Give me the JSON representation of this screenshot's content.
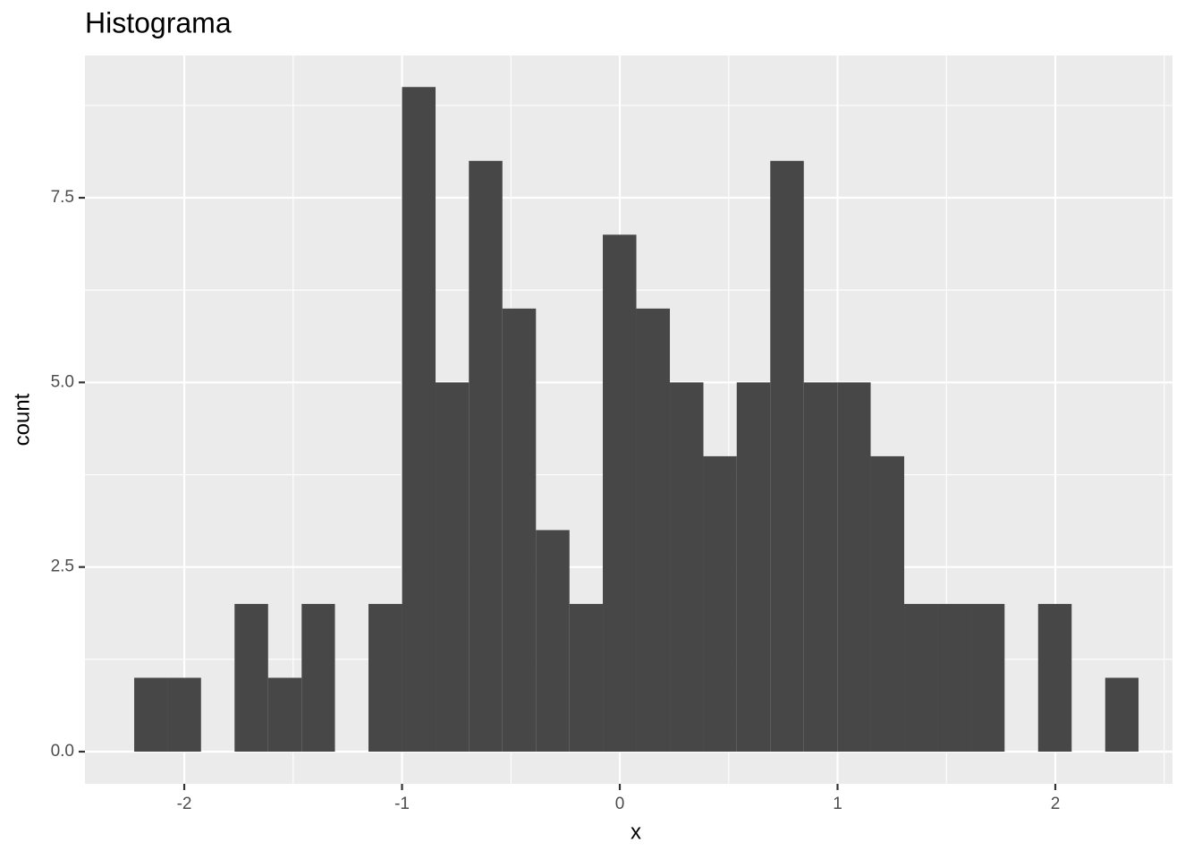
{
  "chart_data": {
    "type": "histogram",
    "title": "Histograma",
    "x_label": "x",
    "y_label": "count",
    "bins": [
      -2.23,
      -2.076,
      -1.923,
      -1.769,
      -1.615,
      -1.461,
      -1.308,
      -1.154,
      -1.0,
      -0.846,
      -0.693,
      -0.539,
      -0.385,
      -0.231,
      -0.078,
      0.076,
      0.23,
      0.384,
      0.537,
      0.691,
      0.845,
      0.999,
      1.152,
      1.306,
      1.46,
      1.614,
      1.767,
      1.921,
      2.075,
      2.229,
      2.382
    ],
    "values": [
      1,
      1,
      0,
      2,
      1,
      2,
      0,
      2,
      9,
      5,
      8,
      6,
      3,
      2,
      7,
      6,
      5,
      4,
      5,
      8,
      5,
      5,
      4,
      2,
      2,
      2,
      0,
      2,
      0,
      1
    ],
    "color": "#474747",
    "xlim": [
      -2.456,
      2.538
    ],
    "xticks": [
      -2,
      -1,
      0,
      1,
      2
    ],
    "ylim": [
      -0.436,
      9.427
    ],
    "yticks": [
      {
        "value": 0,
        "label": "0.0"
      },
      2.5,
      {
        "value": 5,
        "label": "5.0"
      },
      7.5
    ],
    "grid": true
  }
}
